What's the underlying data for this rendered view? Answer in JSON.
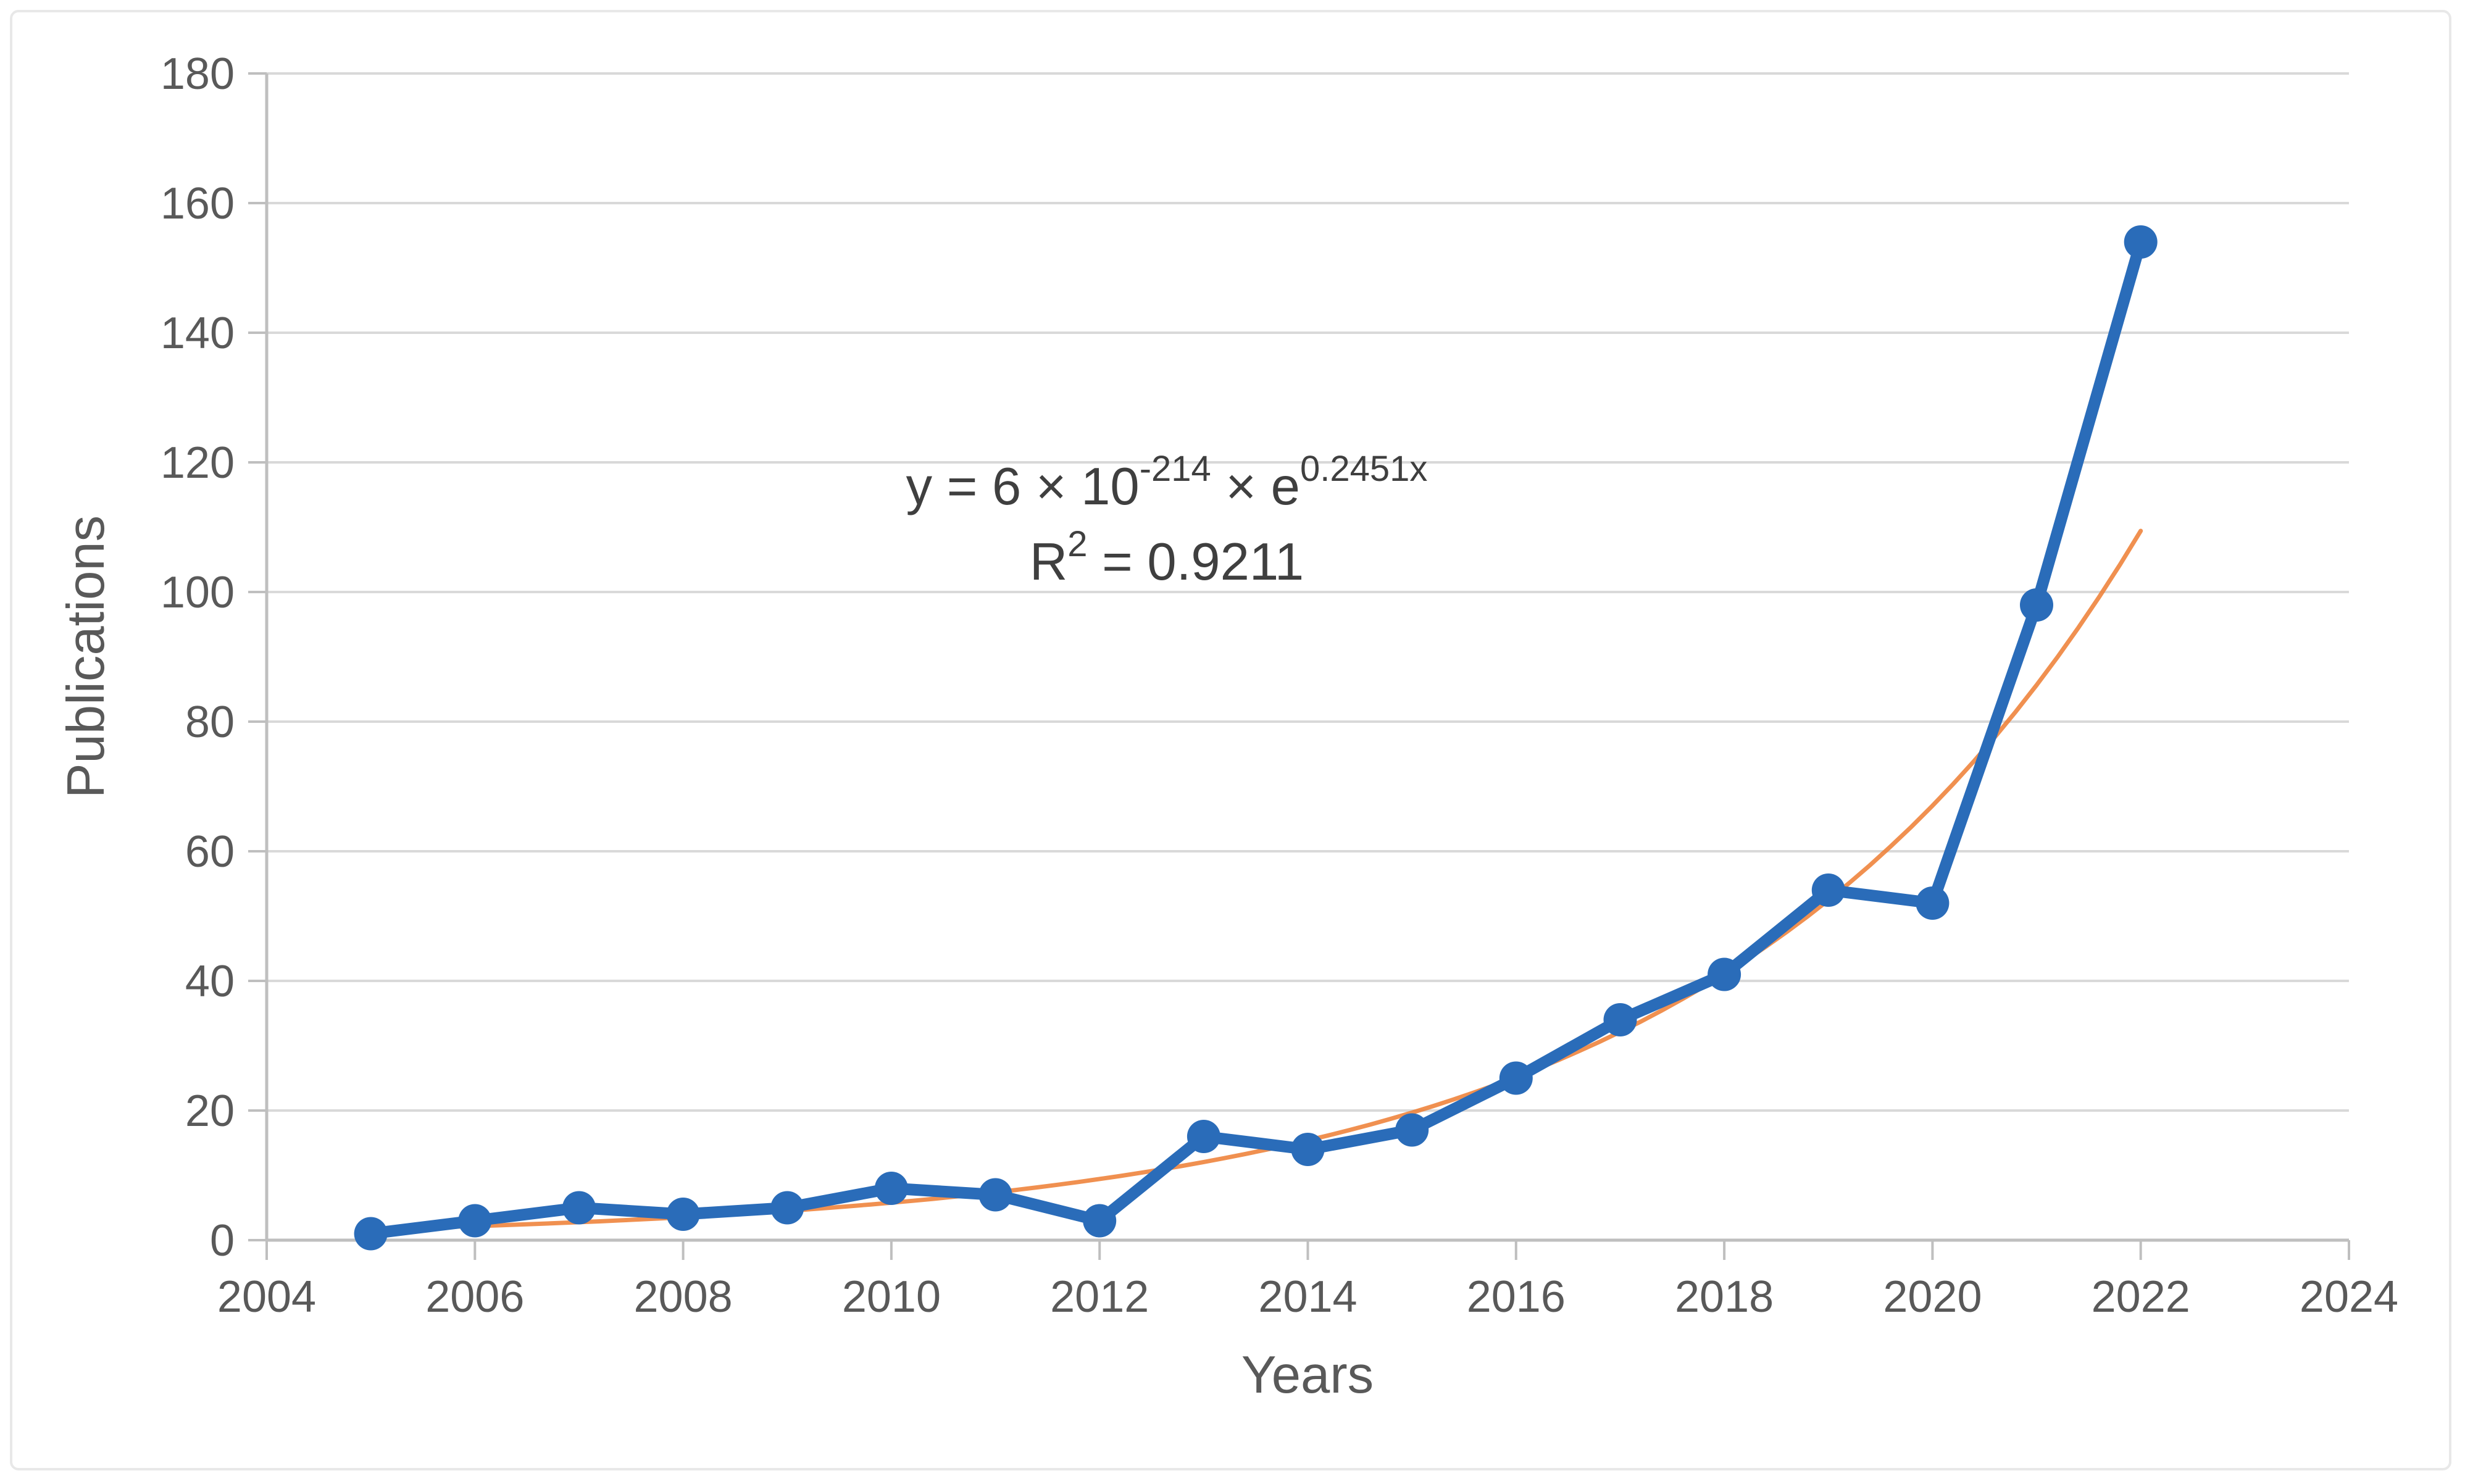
{
  "chart_data": {
    "type": "line",
    "title": "",
    "xlabel": "Years",
    "ylabel": "Publications",
    "x": [
      2005,
      2006,
      2007,
      2008,
      2009,
      2010,
      2011,
      2012,
      2013,
      2014,
      2015,
      2016,
      2017,
      2018,
      2019,
      2020,
      2021,
      2022
    ],
    "series": [
      {
        "name": "Publications",
        "color": "#2A6CB9",
        "marker": "circle",
        "values": [
          1,
          3,
          5,
          4,
          5,
          8,
          7,
          3,
          16,
          14,
          17,
          25,
          34,
          41,
          54,
          52,
          98,
          154
        ]
      }
    ],
    "trendline": {
      "type": "exponential",
      "a": 6.4e-214,
      "b": 0.2451,
      "x_start": 2005,
      "x_end": 2022,
      "color": "#ED7D31"
    },
    "equation": {
      "line1_prefix": "y = 6 × 10",
      "line1_sup1": "-214",
      "line1_mid": " × e",
      "line1_sup2": "0.2451x",
      "r2_base": "R",
      "r2_sup": "2",
      "r2_rest": " = 0.9211"
    },
    "x_axis": {
      "min": 2004,
      "max": 2024,
      "tick_step": 2,
      "ticks": [
        2004,
        2006,
        2008,
        2010,
        2012,
        2014,
        2016,
        2018,
        2020,
        2022,
        2024
      ]
    },
    "y_axis": {
      "min": 0,
      "max": 180,
      "tick_step": 20,
      "ticks": [
        0,
        20,
        40,
        60,
        80,
        100,
        120,
        140,
        160,
        180
      ]
    },
    "grid": true,
    "legend": "none",
    "colors": {
      "gridline": "#D9D9D9",
      "axis": "#BFBFBF",
      "text": "#595959",
      "equation_text": "#3F3F3F",
      "background": "#FFFFFF",
      "frame_border": "#E8E8E8"
    }
  }
}
